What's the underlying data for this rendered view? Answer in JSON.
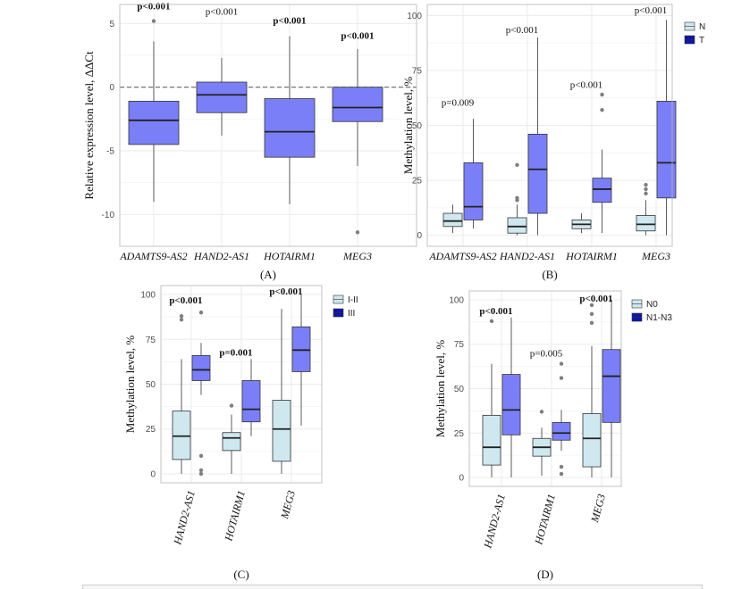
{
  "colors": {
    "light": "#cfe8f0",
    "dark": "#7b7ff7",
    "legend_dark": "#0d16a8",
    "outlier": "#7f7f7f",
    "grid": "#ebebeb"
  },
  "chart_data": [
    {
      "type": "box",
      "panel": "A",
      "panel_label": "(A)",
      "ylabel": "Relative expression level, ΔΔCt",
      "ylim": [
        -12.5,
        6.5
      ],
      "yticks": [
        5,
        0,
        -5,
        -10
      ],
      "categories": [
        "ADAMTS9-AS2",
        "HAND2-AS1",
        "HOTAIRM1",
        "MEG3"
      ],
      "reference_line": 0,
      "boxes": [
        {
          "cat": 0,
          "min": -9.0,
          "q1": -4.5,
          "median": -2.6,
          "q3": -1.1,
          "max": 3.6,
          "outliers": [
            5.2
          ]
        },
        {
          "cat": 1,
          "min": -3.8,
          "q1": -2.0,
          "median": -0.6,
          "q3": 0.4,
          "max": 2.3,
          "outliers": []
        },
        {
          "cat": 2,
          "min": -9.2,
          "q1": -5.5,
          "median": -3.5,
          "q3": -0.9,
          "max": 4.0,
          "outliers": []
        },
        {
          "cat": 3,
          "min": -6.2,
          "q1": -2.7,
          "median": -1.6,
          "q3": 0.0,
          "max": 3.0,
          "outliers": [
            -11.4
          ]
        }
      ],
      "annotations": [
        {
          "cat": 0,
          "text": "p<0.001",
          "y": 6.1,
          "bold": true
        },
        {
          "cat": 1,
          "text": "p<0.001",
          "y": 5.7,
          "bold": false
        },
        {
          "cat": 2,
          "text": "p<0.001",
          "y": 5.0,
          "bold": true
        },
        {
          "cat": 3,
          "text": "p<0.001",
          "y": 3.8,
          "bold": true
        }
      ]
    },
    {
      "type": "box",
      "panel": "B",
      "panel_label": "(B)",
      "ylabel": "Methylation level, %",
      "ylim": [
        -5,
        105
      ],
      "yticks": [
        0,
        25,
        50,
        75,
        100
      ],
      "categories": [
        "ADAMTS9-AS2",
        "HAND2-AS1",
        "HOTAIRM1",
        "MEG3"
      ],
      "legend": [
        {
          "label": "N",
          "color": "light"
        },
        {
          "label": "T",
          "color": "legend_dark"
        }
      ],
      "boxes": [
        {
          "cat": 0,
          "group": 0,
          "min": 1,
          "q1": 4,
          "median": 6.5,
          "q3": 10,
          "max": 14,
          "outliers": []
        },
        {
          "cat": 0,
          "group": 1,
          "min": 3,
          "q1": 7,
          "median": 13,
          "q3": 33,
          "max": 53,
          "outliers": []
        },
        {
          "cat": 1,
          "group": 0,
          "min": 0,
          "q1": 1,
          "median": 4,
          "q3": 8,
          "max": 14,
          "outliers": [
            16,
            17,
            32
          ]
        },
        {
          "cat": 1,
          "group": 1,
          "min": 0,
          "q1": 10,
          "median": 30,
          "q3": 46,
          "max": 90,
          "outliers": []
        },
        {
          "cat": 2,
          "group": 0,
          "min": 1,
          "q1": 3,
          "median": 5,
          "q3": 7,
          "max": 10,
          "outliers": []
        },
        {
          "cat": 2,
          "group": 1,
          "min": 1,
          "q1": 15,
          "median": 21,
          "q3": 26,
          "max": 39,
          "outliers": [
            57,
            64
          ]
        },
        {
          "cat": 3,
          "group": 0,
          "min": 0,
          "q1": 2,
          "median": 5,
          "q3": 9,
          "max": 16,
          "outliers": [
            19,
            21,
            23
          ]
        },
        {
          "cat": 3,
          "group": 1,
          "min": 0,
          "q1": 17,
          "median": 33,
          "q3": 61,
          "max": 98,
          "outliers": []
        }
      ],
      "annotations": [
        {
          "cat": 0,
          "text": "p=0.009",
          "y": 59,
          "bold": false
        },
        {
          "cat": 1,
          "text": "p<0.001",
          "y": 92,
          "bold": false
        },
        {
          "cat": 2,
          "text": "p<0.001",
          "y": 67,
          "bold": false
        },
        {
          "cat": 3,
          "text": "p<0.001",
          "y": 101,
          "bold": false
        }
      ]
    },
    {
      "type": "box",
      "panel": "C",
      "panel_label": "(C)",
      "ylabel": "Methylation level, %",
      "ylim": [
        -5,
        105
      ],
      "yticks": [
        0,
        25,
        50,
        75,
        100
      ],
      "categories": [
        "HAND2-AS1",
        "HOTAIRM1",
        "MEG3"
      ],
      "legend": [
        {
          "label": "I-II",
          "color": "light"
        },
        {
          "label": "III",
          "color": "legend_dark"
        }
      ],
      "boxes": [
        {
          "cat": 0,
          "group": 0,
          "min": 0,
          "q1": 8,
          "median": 21,
          "q3": 35,
          "max": 64,
          "outliers": [
            86,
            88
          ]
        },
        {
          "cat": 0,
          "group": 1,
          "min": 44,
          "q1": 52,
          "median": 58,
          "q3": 66,
          "max": 73,
          "outliers": [
            90,
            10,
            0,
            2
          ]
        },
        {
          "cat": 1,
          "group": 0,
          "min": 0,
          "q1": 13,
          "median": 20,
          "q3": 23,
          "max": 33,
          "outliers": [
            38
          ]
        },
        {
          "cat": 1,
          "group": 1,
          "min": 21,
          "q1": 29,
          "median": 36,
          "q3": 52,
          "max": 64,
          "outliers": []
        },
        {
          "cat": 2,
          "group": 0,
          "min": 0,
          "q1": 7,
          "median": 25,
          "q3": 41,
          "max": 92,
          "outliers": []
        },
        {
          "cat": 2,
          "group": 1,
          "min": 27,
          "q1": 57,
          "median": 69,
          "q3": 82,
          "max": 100,
          "outliers": []
        }
      ],
      "annotations": [
        {
          "cat": 0,
          "text": "p<0.001",
          "y": 95,
          "bold": true
        },
        {
          "cat": 1,
          "text": "p=0.001",
          "y": 66,
          "bold": true
        },
        {
          "cat": 2,
          "text": "p<0.001",
          "y": 100,
          "bold": true
        }
      ]
    },
    {
      "type": "box",
      "panel": "D",
      "panel_label": "(D)",
      "ylabel": "Methylation level, %",
      "ylim": [
        -5,
        105
      ],
      "yticks": [
        0,
        25,
        50,
        75,
        100
      ],
      "categories": [
        "HAND2-AS1",
        "HOTAIRM1",
        "MEG3"
      ],
      "legend": [
        {
          "label": "N0",
          "color": "light"
        },
        {
          "label": "N1-N3",
          "color": "legend_dark"
        }
      ],
      "boxes": [
        {
          "cat": 0,
          "group": 0,
          "min": 0,
          "q1": 7,
          "median": 17,
          "q3": 35,
          "max": 64,
          "outliers": [
            88
          ]
        },
        {
          "cat": 0,
          "group": 1,
          "min": 0,
          "q1": 24,
          "median": 38,
          "q3": 58,
          "max": 90,
          "outliers": []
        },
        {
          "cat": 1,
          "group": 0,
          "min": 1,
          "q1": 12,
          "median": 17,
          "q3": 22,
          "max": 28,
          "outliers": [
            37
          ]
        },
        {
          "cat": 1,
          "group": 1,
          "min": 15,
          "q1": 21,
          "median": 25,
          "q3": 31,
          "max": 38,
          "outliers": [
            64,
            56,
            6,
            2
          ]
        },
        {
          "cat": 2,
          "group": 0,
          "min": 0,
          "q1": 6,
          "median": 22,
          "q3": 36,
          "max": 74,
          "outliers": [
            87,
            92,
            97
          ]
        },
        {
          "cat": 2,
          "group": 1,
          "min": 0,
          "q1": 31,
          "median": 57,
          "q3": 72,
          "max": 100,
          "outliers": []
        }
      ],
      "annotations": [
        {
          "cat": 0,
          "text": "p<0.001",
          "y": 92,
          "bold": true
        },
        {
          "cat": 1,
          "text": "p=0.005",
          "y": 68,
          "bold": false
        },
        {
          "cat": 2,
          "text": "p<0.001",
          "y": 99,
          "bold": true
        }
      ]
    }
  ]
}
